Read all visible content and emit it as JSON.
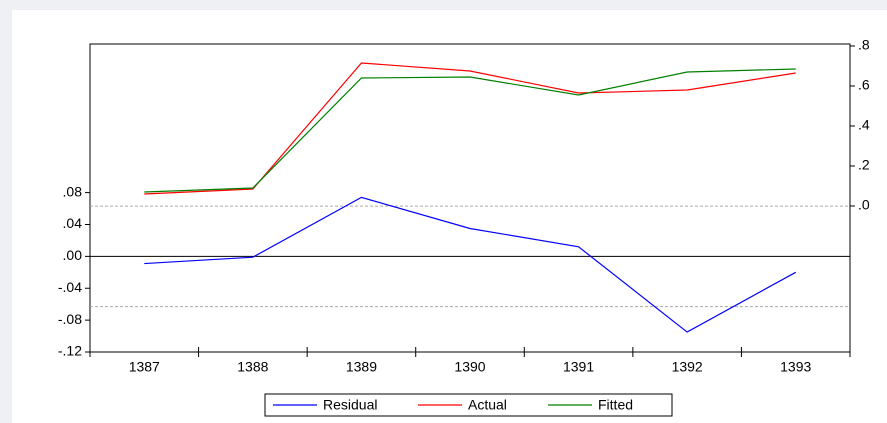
{
  "chart_data": {
    "type": "line",
    "categories": [
      "1387",
      "1388",
      "1389",
      "1390",
      "1391",
      "1392",
      "1393"
    ],
    "series": [
      {
        "name": "Residual",
        "color": "#0000ff",
        "values": [
          -0.009,
          -0.001,
          0.074,
          0.035,
          0.012,
          -0.095,
          -0.02
        ]
      },
      {
        "name": "Actual",
        "color": "#ff0000",
        "axis": "y2",
        "values": [
          0.06,
          0.085,
          0.715,
          0.675,
          0.565,
          0.58,
          0.665
        ]
      },
      {
        "name": "Fitted",
        "color": "#008000",
        "axis": "y2",
        "values": [
          0.07,
          0.09,
          0.64,
          0.645,
          0.555,
          0.67,
          0.685
        ]
      }
    ],
    "ylim": [
      -0.12,
      0.2665
    ],
    "yticks": [
      {
        "value": -0.12,
        "label": "-.12"
      },
      {
        "value": -0.08,
        "label": "-.08"
      },
      {
        "value": -0.04,
        "label": "-.04"
      },
      {
        "value": 0,
        "label": ".00"
      },
      {
        "value": 0.04,
        "label": ".04"
      },
      {
        "value": 0.08,
        "label": ".08"
      }
    ],
    "y2lim": [
      -0.73,
      0.81
    ],
    "y2ticks": [
      {
        "value": 0,
        "label": ".0"
      },
      {
        "value": 0.2,
        "label": ".2"
      },
      {
        "value": 0.4,
        "label": ".4"
      },
      {
        "value": 0.6,
        "label": ".6"
      },
      {
        "value": 0.8,
        "label": ".8"
      }
    ],
    "zero_line": 0,
    "reference_lines": [
      0.063,
      -0.063
    ],
    "legend": "bottom"
  }
}
